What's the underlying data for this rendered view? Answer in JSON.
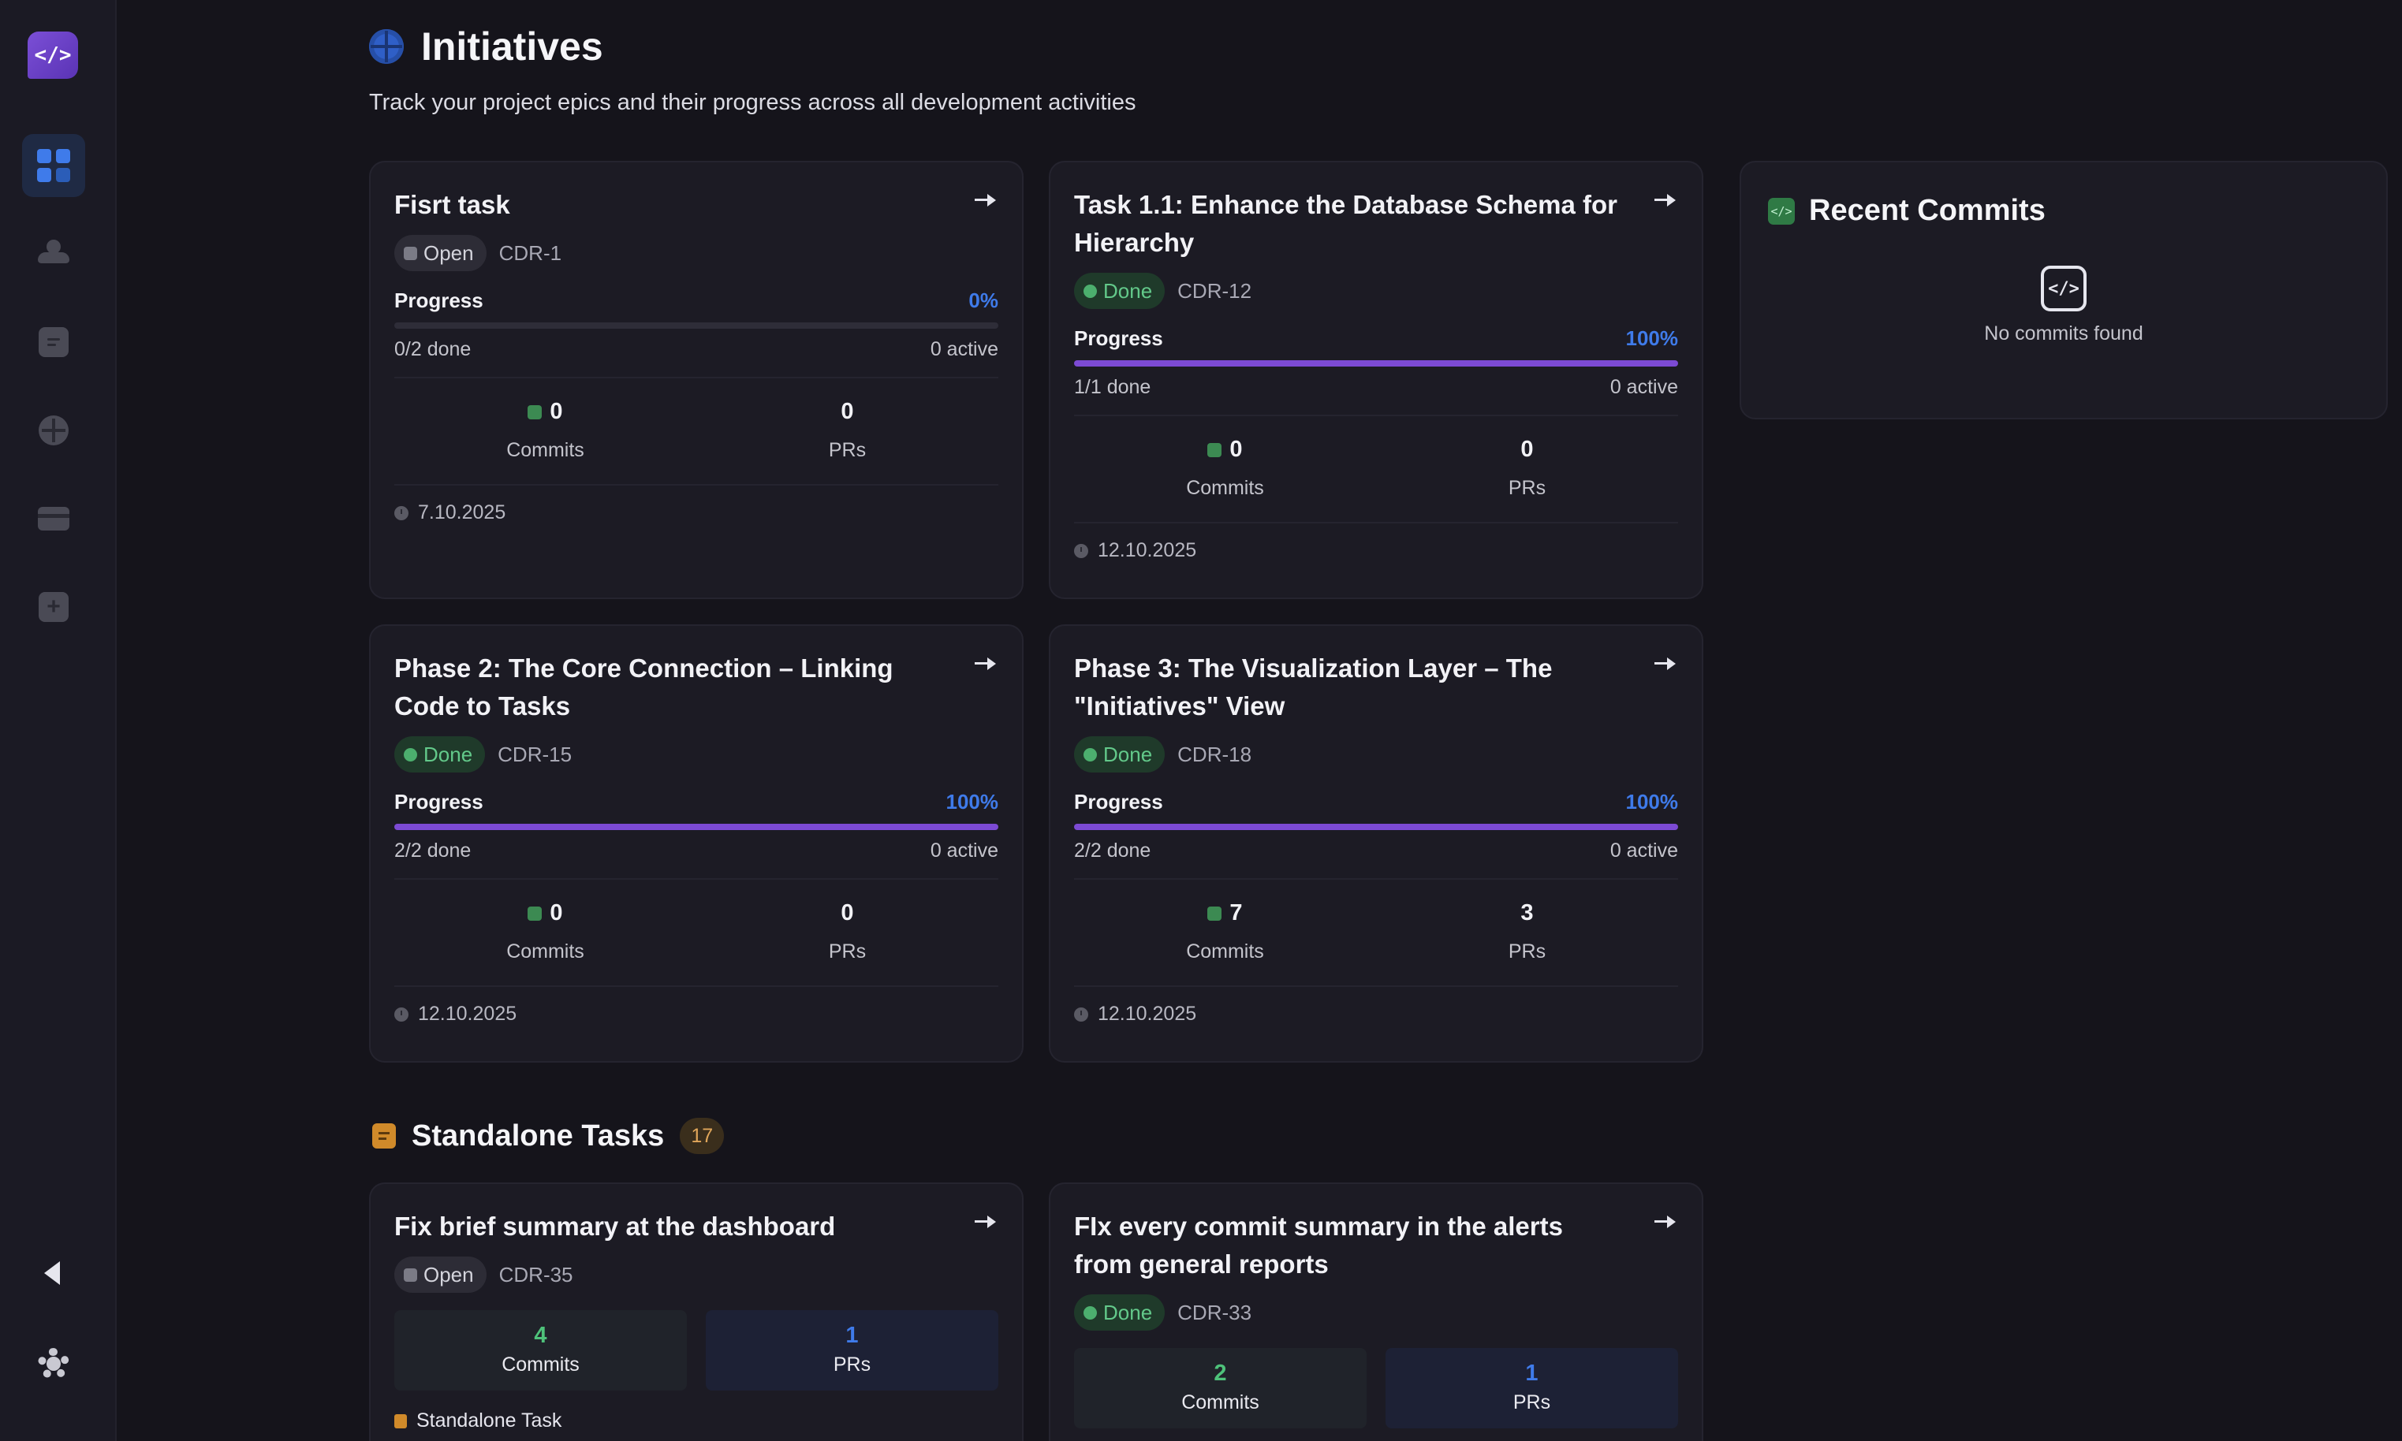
{
  "page": {
    "title": "Initiatives",
    "subtitle": "Track your project epics and their progress across all development activities"
  },
  "sidebar": {
    "logo_text": "</>",
    "items": [
      {
        "icon": "dashboard-grid-icon",
        "active": true
      },
      {
        "icon": "team-icon",
        "active": false
      },
      {
        "icon": "tasks-icon",
        "active": false
      },
      {
        "icon": "initiatives-target-icon",
        "active": false
      },
      {
        "icon": "billing-card-icon",
        "active": false
      },
      {
        "icon": "add-icon",
        "active": false
      }
    ]
  },
  "labels": {
    "progress": "Progress",
    "commits": "Commits",
    "prs": "PRs"
  },
  "initiatives": [
    {
      "title": "Fisrt task",
      "status": "Open",
      "key": "CDR-1",
      "progress": "0%",
      "progress_fraction": 0,
      "done": "0/2 done",
      "active": "0 active",
      "commits": "0",
      "prs": "0",
      "date": "7.10.2025"
    },
    {
      "title": "Task 1.1: Enhance the Database Schema for Hierarchy",
      "status": "Done",
      "key": "CDR-12",
      "progress": "100%",
      "progress_fraction": 1,
      "done": "1/1 done",
      "active": "0 active",
      "commits": "0",
      "prs": "0",
      "date": "12.10.2025"
    },
    {
      "title": "Phase 2: The Core Connection – Linking Code to Tasks",
      "status": "Done",
      "key": "CDR-15",
      "progress": "100%",
      "progress_fraction": 1,
      "done": "2/2 done",
      "active": "0 active",
      "commits": "0",
      "prs": "0",
      "date": "12.10.2025"
    },
    {
      "title": "Phase 3: The Visualization Layer – The \"Initiatives\" View",
      "status": "Done",
      "key": "CDR-18",
      "progress": "100%",
      "progress_fraction": 1,
      "done": "2/2 done",
      "active": "0 active",
      "commits": "7",
      "prs": "3",
      "date": "12.10.2025"
    }
  ],
  "recent_commits": {
    "title": "Recent Commits",
    "empty_text": "No commits found"
  },
  "standalone": {
    "title": "Standalone Tasks",
    "count": "17",
    "tasks": [
      {
        "title": "Fix brief summary at the dashboard",
        "status": "Open",
        "key": "CDR-35",
        "commits": "4",
        "prs": "1",
        "tag": "Standalone Task"
      },
      {
        "title": "FIx every commit summary in the alerts from general reports",
        "status": "Done",
        "key": "CDR-33",
        "commits": "2",
        "prs": "1"
      }
    ]
  },
  "colors": {
    "accent_blue": "#3f7bea",
    "progress_purple": "#7c4ad4",
    "done_green": "#63c98a",
    "background": "#15141b"
  }
}
